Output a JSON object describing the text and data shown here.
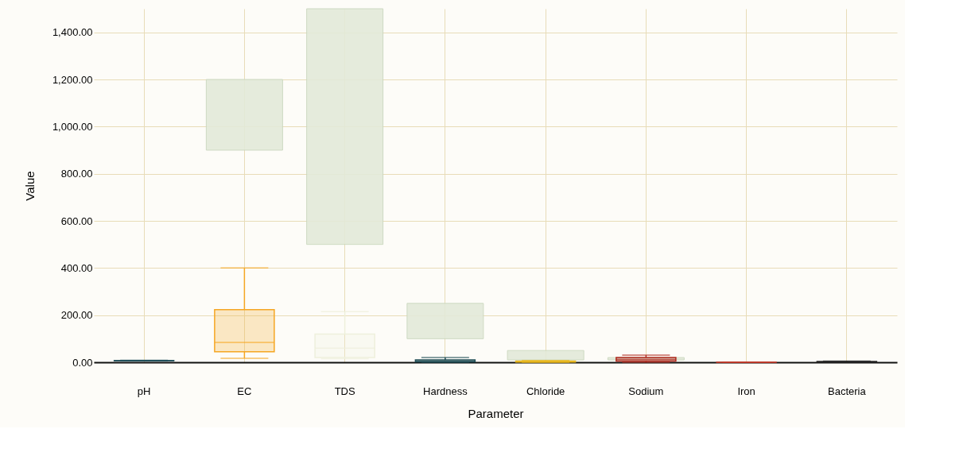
{
  "chart_data": {
    "type": "box",
    "xlabel": "Parameter",
    "ylabel": "Value",
    "categories": [
      "pH",
      "EC",
      "TDS",
      "Hardness",
      "Chloride",
      "Sodium",
      "Iron",
      "Bacteria"
    ],
    "ylim": [
      0,
      1500
    ],
    "yticks": [
      {
        "value": 0,
        "label": "0.00"
      },
      {
        "value": 200,
        "label": "200.00"
      },
      {
        "value": 400,
        "label": "400.00"
      },
      {
        "value": 600,
        "label": "600.00"
      },
      {
        "value": 800,
        "label": "800.00"
      },
      {
        "value": 1000,
        "label": "1,000.00"
      },
      {
        "value": 1200,
        "label": "1,200.00"
      },
      {
        "value": 1400,
        "label": "1,400.00"
      }
    ],
    "grid": true,
    "series": [
      {
        "type": "bar",
        "color": "#e3ead9",
        "values": [
          null,
          300,
          1000,
          150,
          40,
          10,
          null,
          null
        ],
        "base": [
          null,
          900,
          500,
          100,
          10,
          10,
          null,
          null
        ]
      },
      {
        "colors": [
          "#1f4e5a",
          "#f5a623",
          "#eef0dc",
          "#1d4a52",
          "#e8b820",
          "#b0281e",
          "#c0392b",
          "#222222"
        ],
        "boxes": [
          {
            "low": 6,
            "q1": 6.5,
            "median": 7,
            "q3": 7.5,
            "high": 8.5
          },
          {
            "low": 17,
            "q1": 45,
            "median": 84,
            "q3": 223,
            "high": 400
          },
          {
            "low": 15,
            "q1": 20,
            "median": 60,
            "q3": 120,
            "high": 215
          },
          {
            "low": 0,
            "q1": 2,
            "median": 5,
            "q3": 10,
            "high": 20
          },
          {
            "low": 0,
            "q1": 1,
            "median": 3,
            "q3": 5,
            "high": 8
          },
          {
            "low": 0,
            "q1": 5,
            "median": 12,
            "q3": 20,
            "high": 30
          },
          {
            "low": 0,
            "q1": 0.1,
            "median": 0.2,
            "q3": 0.3,
            "high": 0.5
          },
          {
            "low": 0,
            "q1": 0,
            "median": 1,
            "q3": 3,
            "high": 5
          }
        ]
      }
    ]
  }
}
